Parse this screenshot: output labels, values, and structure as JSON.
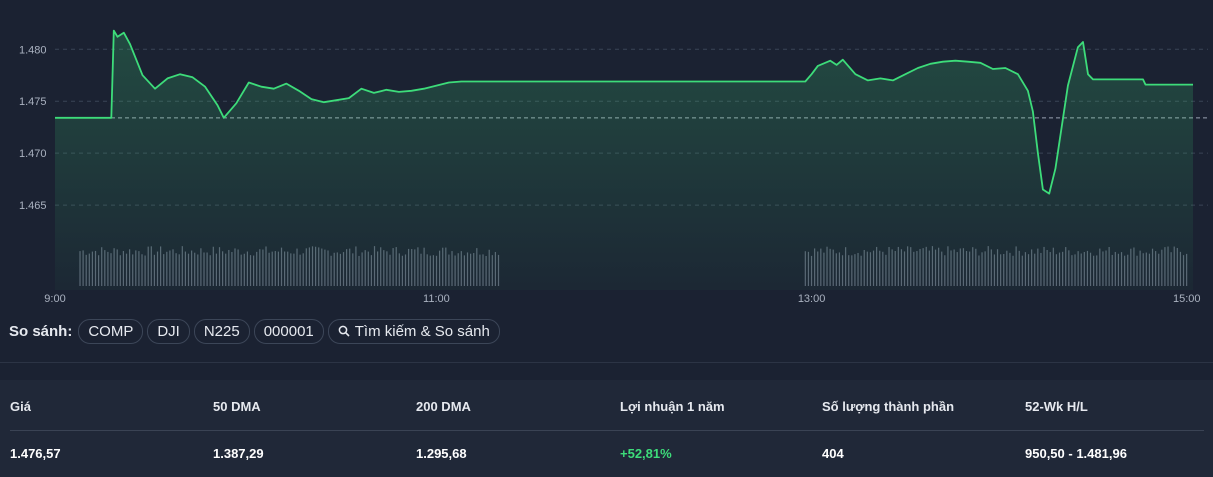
{
  "chart_data": {
    "type": "area",
    "x_ticks": [
      "9:00",
      "11:00",
      "13:00",
      "15:00"
    ],
    "y_ticks": [
      "1.480",
      "1.475",
      "1.470",
      "1.465"
    ],
    "y_tick_values": [
      1480,
      1475,
      1470,
      1465
    ],
    "ylim": [
      1462.6,
      1483.3
    ],
    "reference_line": 1473.4,
    "grid": true,
    "line_color": "#3ddc7a",
    "series": [
      {
        "values": [
          [
            0,
            1473.4
          ],
          [
            0.25,
            1473.4
          ],
          [
            0.45,
            1473.4
          ],
          [
            0.47,
            1481.8
          ],
          [
            0.5,
            1481.2
          ],
          [
            0.55,
            1481.6
          ],
          [
            0.6,
            1480.5
          ],
          [
            0.7,
            1477.5
          ],
          [
            0.8,
            1476.2
          ],
          [
            0.9,
            1477.2
          ],
          [
            1.0,
            1477.6
          ],
          [
            1.1,
            1477.3
          ],
          [
            1.2,
            1476.4
          ],
          [
            1.3,
            1474.6
          ],
          [
            1.35,
            1473.4
          ],
          [
            1.45,
            1474.8
          ],
          [
            1.55,
            1476.8
          ],
          [
            1.65,
            1476.4
          ],
          [
            1.75,
            1476.2
          ],
          [
            1.85,
            1476.7
          ],
          [
            1.95,
            1476.0
          ],
          [
            2.05,
            1475.2
          ],
          [
            2.15,
            1474.9
          ],
          [
            2.25,
            1475.1
          ],
          [
            2.35,
            1475.3
          ],
          [
            2.45,
            1476.2
          ],
          [
            2.55,
            1475.8
          ],
          [
            2.65,
            1476.1
          ],
          [
            2.75,
            1475.9
          ],
          [
            2.85,
            1476.0
          ],
          [
            2.95,
            1476.2
          ],
          [
            3.05,
            1476.5
          ],
          [
            3.15,
            1476.8
          ],
          [
            3.25,
            1476.9
          ],
          [
            3.35,
            1476.9
          ],
          [
            6.0,
            1476.9
          ],
          [
            6.05,
            1477.6
          ],
          [
            6.1,
            1478.4
          ],
          [
            6.2,
            1478.9
          ],
          [
            6.25,
            1478.5
          ],
          [
            6.3,
            1479.0
          ],
          [
            6.4,
            1477.6
          ],
          [
            6.5,
            1477.0
          ],
          [
            6.6,
            1477.2
          ],
          [
            6.7,
            1477.0
          ],
          [
            6.8,
            1477.6
          ],
          [
            6.9,
            1478.2
          ],
          [
            7.0,
            1478.6
          ],
          [
            7.1,
            1478.8
          ],
          [
            7.2,
            1478.9
          ],
          [
            7.3,
            1478.8
          ],
          [
            7.4,
            1478.7
          ],
          [
            7.5,
            1478.1
          ],
          [
            7.6,
            1478.2
          ],
          [
            7.7,
            1477.6
          ],
          [
            7.78,
            1476.0
          ],
          [
            7.82,
            1474.0
          ],
          [
            7.86,
            1470.0
          ],
          [
            7.9,
            1466.5
          ],
          [
            7.95,
            1466.1
          ],
          [
            8.0,
            1468.5
          ],
          [
            8.1,
            1476.5
          ],
          [
            8.18,
            1480.2
          ],
          [
            8.22,
            1480.7
          ],
          [
            8.26,
            1477.6
          ],
          [
            8.3,
            1477.1
          ],
          [
            8.5,
            1477.1
          ],
          [
            8.7,
            1477.1
          ],
          [
            8.72,
            1476.6
          ],
          [
            9.1,
            1476.6
          ]
        ]
      }
    ],
    "volume_regions": [
      [
        0.2,
        3.55
      ],
      [
        6.0,
        9.05
      ]
    ]
  },
  "compare": {
    "label": "So sánh:",
    "chips": [
      "COMP",
      "DJI",
      "N225",
      "000001"
    ],
    "search_label": "Tìm kiếm & So sánh"
  },
  "stats": {
    "headers": [
      "Giá",
      "50 DMA",
      "200 DMA",
      "Lợi nhuận 1 năm",
      "Số lượng thành phần",
      "52-Wk H/L"
    ],
    "values": [
      "1.476,57",
      "1.387,29",
      "1.295,68",
      "+52,81%",
      "404",
      "950,50 - 1.481,96"
    ]
  }
}
